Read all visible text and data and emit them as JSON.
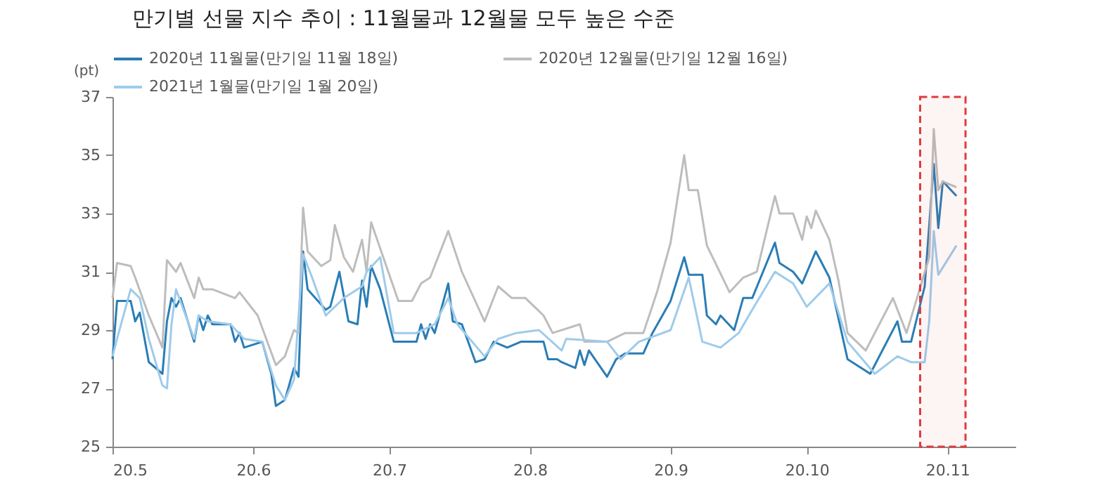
{
  "chart_data": {
    "type": "line",
    "title": "만기별 선물 지수 추이 : 11월물과 12월물 모두 높은 수준",
    "ylabel": "(pt)",
    "xlim": [
      "2020-05-01",
      "2020-11-16"
    ],
    "xticks": [
      {
        "value": "2020-05-01",
        "label": "20.5"
      },
      {
        "value": "2020-06-01",
        "label": "20.6"
      },
      {
        "value": "2020-07-01",
        "label": "20.7"
      },
      {
        "value": "2020-08-01",
        "label": "20.8"
      },
      {
        "value": "2020-09-01",
        "label": "20.9"
      },
      {
        "value": "2020-10-01",
        "label": "20.10"
      },
      {
        "value": "2020-11-01",
        "label": "20.11"
      }
    ],
    "ylim": [
      25,
      37
    ],
    "yticks": [
      25,
      27,
      29,
      31,
      33,
      35,
      37
    ],
    "grid": false,
    "legend": "top",
    "marker": "none",
    "line_style": "solid",
    "bands": [
      {
        "axis": "x",
        "from": "2020-10-26",
        "to": "2020-11-05",
        "color": "#e03c3c"
      }
    ],
    "series": [
      {
        "name": "2020년  11월물(만기일  11월  18일)",
        "color": "#2a7db5",
        "x": [
          "2020-05-01",
          "2020-05-02",
          "2020-05-05",
          "2020-05-06",
          "2020-05-07",
          "2020-05-09",
          "2020-05-12",
          "2020-05-13",
          "2020-05-14",
          "2020-05-15",
          "2020-05-16",
          "2020-05-19",
          "2020-05-20",
          "2020-05-21",
          "2020-05-22",
          "2020-05-23",
          "2020-05-27",
          "2020-05-28",
          "2020-05-29",
          "2020-05-30",
          "2020-06-03",
          "2020-06-05",
          "2020-06-06",
          "2020-06-08",
          "2020-06-10",
          "2020-06-11",
          "2020-06-12",
          "2020-06-13",
          "2020-06-17",
          "2020-06-18",
          "2020-06-20",
          "2020-06-22",
          "2020-06-24",
          "2020-06-25",
          "2020-06-26",
          "2020-06-27",
          "2020-06-29",
          "2020-07-02",
          "2020-07-07",
          "2020-07-08",
          "2020-07-09",
          "2020-07-10",
          "2020-07-11",
          "2020-07-14",
          "2020-07-15",
          "2020-07-17",
          "2020-07-20",
          "2020-07-22",
          "2020-07-24",
          "2020-07-27",
          "2020-07-30",
          "2020-08-04",
          "2020-08-05",
          "2020-08-07",
          "2020-08-08",
          "2020-08-11",
          "2020-08-12",
          "2020-08-13",
          "2020-08-14",
          "2020-08-18",
          "2020-08-20",
          "2020-08-22",
          "2020-08-26",
          "2020-08-28",
          "2020-09-01",
          "2020-09-04",
          "2020-09-05",
          "2020-09-08",
          "2020-09-09",
          "2020-09-11",
          "2020-09-12",
          "2020-09-15",
          "2020-09-17",
          "2020-09-19",
          "2020-09-24",
          "2020-09-25",
          "2020-09-28",
          "2020-09-30",
          "2020-10-03",
          "2020-10-06",
          "2020-10-10",
          "2020-10-14",
          "2020-10-15",
          "2020-10-21",
          "2020-10-22",
          "2020-10-24",
          "2020-10-27",
          "2020-10-29",
          "2020-10-30",
          "2020-10-31",
          "2020-11-03"
        ],
        "values": [
          28.0,
          30.0,
          30.0,
          29.3,
          29.6,
          27.9,
          27.5,
          29.3,
          30.1,
          29.8,
          30.1,
          28.6,
          29.5,
          29.0,
          29.5,
          29.2,
          29.2,
          28.6,
          28.9,
          28.4,
          28.6,
          27.5,
          26.4,
          26.6,
          27.7,
          27.4,
          31.7,
          30.4,
          29.7,
          29.8,
          31.0,
          29.3,
          29.2,
          30.7,
          29.8,
          31.2,
          30.4,
          28.6,
          28.6,
          29.2,
          28.7,
          29.2,
          28.9,
          30.6,
          29.3,
          29.2,
          27.9,
          28.0,
          28.6,
          28.4,
          28.6,
          28.6,
          28.0,
          28.0,
          27.9,
          27.7,
          28.3,
          27.8,
          28.3,
          27.4,
          28.0,
          28.2,
          28.2,
          28.9,
          30.0,
          31.5,
          30.9,
          30.9,
          29.5,
          29.2,
          29.5,
          29.0,
          30.1,
          30.1,
          32.0,
          31.3,
          31.0,
          30.6,
          31.7,
          30.8,
          28.0,
          27.6,
          27.5,
          29.3,
          28.6,
          28.6,
          30.5,
          34.7,
          32.5,
          34.1,
          33.6
        ]
      },
      {
        "name": "2020년  12월물(만기일  12월  16일)",
        "color": "#bdbdbd",
        "x": [
          "2020-05-01",
          "2020-05-02",
          "2020-05-05",
          "2020-05-06",
          "2020-05-09",
          "2020-05-12",
          "2020-05-13",
          "2020-05-15",
          "2020-05-16",
          "2020-05-19",
          "2020-05-20",
          "2020-05-21",
          "2020-05-23",
          "2020-05-28",
          "2020-05-29",
          "2020-06-02",
          "2020-06-06",
          "2020-06-08",
          "2020-06-10",
          "2020-06-11",
          "2020-06-12",
          "2020-06-13",
          "2020-06-16",
          "2020-06-18",
          "2020-06-19",
          "2020-06-21",
          "2020-06-23",
          "2020-06-25",
          "2020-06-26",
          "2020-06-27",
          "2020-06-29",
          "2020-07-03",
          "2020-07-06",
          "2020-07-08",
          "2020-07-10",
          "2020-07-14",
          "2020-07-17",
          "2020-07-22",
          "2020-07-25",
          "2020-07-28",
          "2020-07-31",
          "2020-08-04",
          "2020-08-06",
          "2020-08-12",
          "2020-08-13",
          "2020-08-18",
          "2020-08-22",
          "2020-08-26",
          "2020-08-29",
          "2020-09-01",
          "2020-09-04",
          "2020-09-05",
          "2020-09-07",
          "2020-09-09",
          "2020-09-14",
          "2020-09-17",
          "2020-09-20",
          "2020-09-24",
          "2020-09-25",
          "2020-09-28",
          "2020-09-30",
          "2020-10-01",
          "2020-10-02",
          "2020-10-03",
          "2020-10-06",
          "2020-10-08",
          "2020-10-10",
          "2020-10-14",
          "2020-10-17",
          "2020-10-20",
          "2020-10-23",
          "2020-10-28",
          "2020-10-29",
          "2020-10-30",
          "2020-10-31",
          "2020-11-03"
        ],
        "values": [
          30.1,
          31.3,
          31.2,
          30.8,
          29.5,
          28.4,
          31.4,
          31.0,
          31.3,
          30.1,
          30.8,
          30.4,
          30.4,
          30.1,
          30.3,
          29.5,
          27.8,
          28.1,
          29.0,
          28.9,
          33.2,
          31.7,
          31.2,
          31.4,
          32.6,
          31.5,
          31.0,
          32.1,
          31.0,
          32.7,
          31.8,
          30.0,
          30.0,
          30.6,
          30.8,
          32.4,
          31.0,
          29.3,
          30.5,
          30.1,
          30.1,
          29.5,
          28.9,
          29.2,
          28.6,
          28.6,
          28.9,
          28.9,
          30.3,
          32.0,
          35.0,
          33.8,
          33.8,
          31.9,
          30.3,
          30.8,
          31.0,
          33.6,
          33.0,
          33.0,
          32.1,
          32.9,
          32.5,
          33.1,
          32.1,
          30.7,
          28.9,
          28.3,
          29.2,
          30.1,
          28.9,
          31.5,
          35.9,
          33.8,
          34.1,
          33.9
        ]
      },
      {
        "name": "2021년  1월물(만기일  1월  20일)",
        "color": "#9fcbea",
        "x": [
          "2020-05-01",
          "2020-05-02",
          "2020-05-05",
          "2020-05-07",
          "2020-05-09",
          "2020-05-12",
          "2020-05-13",
          "2020-05-14",
          "2020-05-15",
          "2020-05-19",
          "2020-05-20",
          "2020-05-22",
          "2020-05-27",
          "2020-05-30",
          "2020-06-03",
          "2020-06-06",
          "2020-06-08",
          "2020-06-10",
          "2020-06-12",
          "2020-06-14",
          "2020-06-17",
          "2020-06-21",
          "2020-06-25",
          "2020-06-26",
          "2020-06-29",
          "2020-07-02",
          "2020-07-07",
          "2020-07-11",
          "2020-07-14",
          "2020-07-16",
          "2020-07-22",
          "2020-07-25",
          "2020-07-29",
          "2020-08-03",
          "2020-08-08",
          "2020-08-09",
          "2020-08-18",
          "2020-08-21",
          "2020-08-25",
          "2020-09-01",
          "2020-09-05",
          "2020-09-08",
          "2020-09-12",
          "2020-09-16",
          "2020-09-19",
          "2020-09-24",
          "2020-09-28",
          "2020-10-01",
          "2020-10-06",
          "2020-10-10",
          "2020-10-16",
          "2020-10-21",
          "2020-10-24",
          "2020-10-27",
          "2020-10-28",
          "2020-10-29",
          "2020-10-30",
          "2020-11-03"
        ],
        "values": [
          28.1,
          28.7,
          30.4,
          30.1,
          28.7,
          27.1,
          27.0,
          29.2,
          30.4,
          28.7,
          29.5,
          29.3,
          29.2,
          28.7,
          28.6,
          27.1,
          26.6,
          27.3,
          31.6,
          30.8,
          29.5,
          30.1,
          30.5,
          31.0,
          31.5,
          28.9,
          28.9,
          29.2,
          30.1,
          29.2,
          28.1,
          28.7,
          28.9,
          29.0,
          28.3,
          28.7,
          28.6,
          28.0,
          28.6,
          29.0,
          30.8,
          28.6,
          28.4,
          28.9,
          29.7,
          31.0,
          30.6,
          29.8,
          30.6,
          28.6,
          27.5,
          28.1,
          27.9,
          27.9,
          29.3,
          32.4,
          30.9,
          31.9
        ]
      }
    ]
  }
}
